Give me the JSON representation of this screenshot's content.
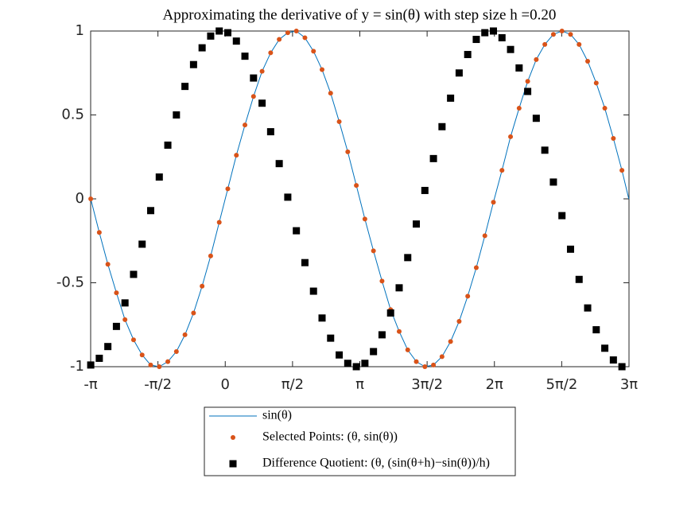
{
  "chart_data": {
    "type": "line",
    "title": "Approximating the derivative of y = sin(θ) with step size h =0.20",
    "xlim": [
      -3.1416,
      9.4248
    ],
    "xticks": [
      {
        "value": -3.1416,
        "label": "-π"
      },
      {
        "value": -1.5708,
        "label": "-π/2"
      },
      0,
      {
        "value": 1.5708,
        "label": "π/2"
      },
      {
        "value": 3.1416,
        "label": "π"
      },
      {
        "value": 4.7124,
        "label": "3π/2"
      },
      {
        "value": 6.2832,
        "label": "2π"
      },
      {
        "value": 7.854,
        "label": "5π/2"
      },
      {
        "value": 9.4248,
        "label": "3π"
      }
    ],
    "ylim": [
      -1,
      1
    ],
    "yticks": [
      -1,
      -0.5,
      0,
      0.5,
      1
    ],
    "legend": "bottom",
    "series": [
      {
        "name": "sin(θ)",
        "color": "#0072bd",
        "marker": "none",
        "x": [
          -3.14,
          -2.94,
          -2.74,
          -2.54,
          -2.34,
          -2.14,
          -1.94,
          -1.74,
          -1.54,
          -1.34,
          -1.14,
          -0.94,
          -0.74,
          -0.54,
          -0.34,
          -0.14,
          0.06,
          0.26,
          0.46,
          0.66,
          0.86,
          1.06,
          1.26,
          1.46,
          1.66,
          1.86,
          2.06,
          2.26,
          2.46,
          2.66,
          2.86,
          3.06,
          3.26,
          3.46,
          3.66,
          3.86,
          4.06,
          4.26,
          4.46,
          4.66,
          4.86,
          5.06,
          5.26,
          5.46,
          5.66,
          5.86,
          6.06,
          6.26,
          6.46,
          6.66,
          6.86,
          7.06,
          7.26,
          7.46,
          7.66,
          7.86,
          8.06,
          8.26,
          8.46,
          8.66,
          8.86,
          9.06,
          9.26,
          9.42
        ],
        "values": [
          0,
          -0.2,
          -0.39,
          -0.56,
          -0.72,
          -0.84,
          -0.93,
          -0.99,
          -1,
          -0.97,
          -0.91,
          -0.81,
          -0.68,
          -0.52,
          -0.34,
          -0.14,
          0.06,
          0.26,
          0.44,
          0.61,
          0.76,
          0.87,
          0.95,
          0.99,
          1,
          0.96,
          0.88,
          0.77,
          0.63,
          0.46,
          0.28,
          0.08,
          -0.12,
          -0.31,
          -0.49,
          -0.66,
          -0.79,
          -0.9,
          -0.97,
          -1,
          -0.99,
          -0.94,
          -0.85,
          -0.73,
          -0.58,
          -0.41,
          -0.22,
          -0.02,
          0.17,
          0.37,
          0.54,
          0.7,
          0.83,
          0.92,
          0.98,
          1,
          0.98,
          0.92,
          0.82,
          0.69,
          0.54,
          0.36,
          0.17,
          0
        ]
      },
      {
        "name": "Selected Points: (θ, sin(θ))",
        "color": "#d95319",
        "marker": "circle",
        "x": [
          -3.14,
          -2.94,
          -2.74,
          -2.54,
          -2.34,
          -2.14,
          -1.94,
          -1.74,
          -1.54,
          -1.34,
          -1.14,
          -0.94,
          -0.74,
          -0.54,
          -0.34,
          -0.14,
          0.06,
          0.26,
          0.46,
          0.66,
          0.86,
          1.06,
          1.26,
          1.46,
          1.66,
          1.86,
          2.06,
          2.26,
          2.46,
          2.66,
          2.86,
          3.06,
          3.26,
          3.46,
          3.66,
          3.86,
          4.06,
          4.26,
          4.46,
          4.66,
          4.86,
          5.06,
          5.26,
          5.46,
          5.66,
          5.86,
          6.06,
          6.26,
          6.46,
          6.66,
          6.86,
          7.06,
          7.26,
          7.46,
          7.66,
          7.86,
          8.06,
          8.26,
          8.46,
          8.66,
          8.86,
          9.06,
          9.26
        ],
        "values": [
          0,
          -0.2,
          -0.39,
          -0.56,
          -0.72,
          -0.84,
          -0.93,
          -0.99,
          -1,
          -0.97,
          -0.91,
          -0.81,
          -0.68,
          -0.52,
          -0.34,
          -0.14,
          0.06,
          0.26,
          0.44,
          0.61,
          0.76,
          0.87,
          0.95,
          0.99,
          1,
          0.96,
          0.88,
          0.77,
          0.63,
          0.46,
          0.28,
          0.08,
          -0.12,
          -0.31,
          -0.49,
          -0.66,
          -0.79,
          -0.9,
          -0.97,
          -1,
          -0.99,
          -0.94,
          -0.85,
          -0.73,
          -0.58,
          -0.41,
          -0.22,
          -0.02,
          0.17,
          0.37,
          0.54,
          0.7,
          0.83,
          0.92,
          0.98,
          1,
          0.98,
          0.92,
          0.82,
          0.69,
          0.54,
          0.36,
          0.17
        ]
      },
      {
        "name": "Difference Quotient: (θ, (sin(θ+h)−sin(θ))/h)",
        "color": "#000000",
        "marker": "square",
        "x": [
          -3.14,
          -2.94,
          -2.74,
          -2.54,
          -2.34,
          -2.14,
          -1.94,
          -1.74,
          -1.54,
          -1.34,
          -1.14,
          -0.94,
          -0.74,
          -0.54,
          -0.34,
          -0.14,
          0.06,
          0.26,
          0.46,
          0.66,
          0.86,
          1.06,
          1.26,
          1.46,
          1.66,
          1.86,
          2.06,
          2.26,
          2.46,
          2.66,
          2.86,
          3.06,
          3.26,
          3.46,
          3.66,
          3.86,
          4.06,
          4.26,
          4.46,
          4.66,
          4.86,
          5.06,
          5.26,
          5.46,
          5.66,
          5.86,
          6.06,
          6.26,
          6.46,
          6.66,
          6.86,
          7.06,
          7.26,
          7.46,
          7.66,
          7.86,
          8.06,
          8.26,
          8.46,
          8.66,
          8.86,
          9.06,
          9.26
        ],
        "values": [
          -0.99,
          -0.95,
          -0.88,
          -0.76,
          -0.62,
          -0.45,
          -0.27,
          -0.07,
          0.13,
          0.32,
          0.5,
          0.67,
          0.8,
          0.9,
          0.97,
          1,
          0.99,
          0.94,
          0.85,
          0.72,
          0.57,
          0.4,
          0.21,
          0.01,
          -0.19,
          -0.38,
          -0.55,
          -0.71,
          -0.83,
          -0.93,
          -0.98,
          -1,
          -0.98,
          -0.91,
          -0.81,
          -0.68,
          -0.53,
          -0.35,
          -0.15,
          0.05,
          0.24,
          0.43,
          0.6,
          0.75,
          0.86,
          0.95,
          0.99,
          1,
          0.96,
          0.89,
          0.78,
          0.64,
          0.48,
          0.29,
          0.1,
          -0.1,
          -0.3,
          -0.48,
          -0.65,
          -0.78,
          -0.89,
          -0.96,
          -1
        ]
      }
    ]
  }
}
